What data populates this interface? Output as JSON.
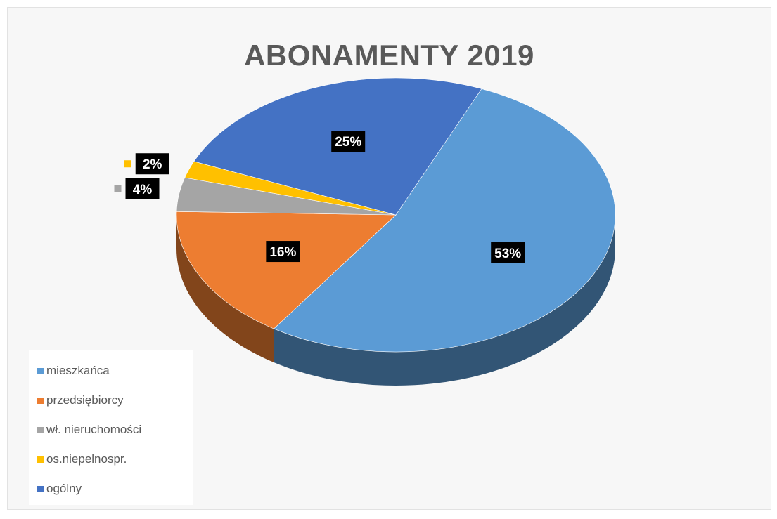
{
  "chart_data": {
    "type": "pie",
    "title": "ABONAMENTY 2019",
    "labels": [
      "mieszkańca",
      "przedsiębiorcy",
      "wł. nieruchomości",
      "os.niepelnospr.",
      "ogólny"
    ],
    "values": [
      53,
      16,
      4,
      2,
      25
    ],
    "data_labels": [
      "53%",
      "16%",
      "4%",
      "2%",
      "25%"
    ],
    "colors": [
      "#5b9bd5",
      "#ed7d31",
      "#a5a5a5",
      "#ffc000",
      "#4472c4"
    ],
    "legend_position": "bottom-left",
    "style": "3d"
  }
}
